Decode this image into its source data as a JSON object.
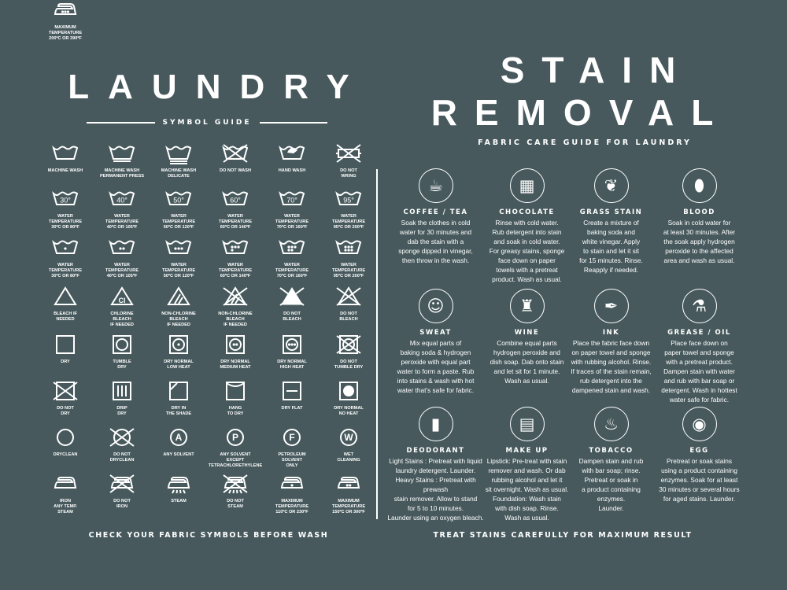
{
  "laundry": {
    "title": "LAUNDRY",
    "subtitle": "SYMBOL GUIDE",
    "footer": "CHECK YOUR FABRIC SYMBOLS BEFORE WASH",
    "symbols": [
      {
        "label": "MACHINE WASH",
        "shape": "tub",
        "under": 0
      },
      {
        "label": "MACHINE WASH\nPERMANENT PRESS",
        "shape": "tub",
        "under": 1
      },
      {
        "label": "MACHINE WASH\nDELICATE",
        "shape": "tub",
        "under": 2
      },
      {
        "label": "DO NOT WASH",
        "shape": "tub",
        "cross": true
      },
      {
        "label": "HAND WASH",
        "shape": "tub",
        "hand": true
      },
      {
        "label": "DO NOT\nWRING",
        "shape": "wring",
        "cross": true
      },
      {
        "label": "WATER\nTEMPERATURE\n30ºC OR 80ºF",
        "shape": "tub",
        "mark": "30°"
      },
      {
        "label": "WATER\nTEMPERATURE\n40ºC OR 105ºF",
        "shape": "tub",
        "mark": "40°"
      },
      {
        "label": "WATER\nTEMPERATURE\n50ºC OR 120ºF",
        "shape": "tub",
        "mark": "50°"
      },
      {
        "label": "WATER\nTEMPERATURE\n60ºC OR 140ºF",
        "shape": "tub",
        "mark": "60°"
      },
      {
        "label": "WATER\nTEMPERATURE\n70ºC OR 160ºF",
        "shape": "tub",
        "mark": "70°"
      },
      {
        "label": "WATER\nTEMPERATURE\n95ºC OR 200ºF",
        "shape": "tub",
        "mark": "95°"
      },
      {
        "label": "WATER\nTEMPERATURE\n30ºC OR 80ºF",
        "shape": "tub",
        "dots": 1
      },
      {
        "label": "WATER\nTEMPERATURE\n40ºC OR 105ºF",
        "shape": "tub",
        "dots": 2
      },
      {
        "label": "WATER\nTEMPERATURE\n50ºC OR 120ºF",
        "shape": "tub",
        "dots": 3
      },
      {
        "label": "WATER\nTEMPERATURE\n60ºC OR 140ºF",
        "shape": "tub",
        "dots": 4
      },
      {
        "label": "WATER\nTEMPERATURE\n70ºC OR 160ºF",
        "shape": "tub",
        "dots": 5
      },
      {
        "label": "WATER\nTEMPERATURE\n95ºC OR 200ºF",
        "shape": "tub",
        "dots": 6
      },
      {
        "label": "BLEACH IF\nNEEDED",
        "shape": "triangle"
      },
      {
        "label": "CHLORINE\nBLEACH\nIF NEEDED",
        "shape": "triangle",
        "mark": "Cl"
      },
      {
        "label": "NON-CHLORINE\nBLEACH\nIF NEEDED",
        "shape": "triangle",
        "stripes": true
      },
      {
        "label": "NON-CHLORINE\nBLEACH\nIF NEEDED",
        "shape": "triangle",
        "stripes": true,
        "cross": true
      },
      {
        "label": "DO NOT\nBLEACH",
        "shape": "triangle",
        "filled": true,
        "cross": true
      },
      {
        "label": "DO NOT\nBLEACH",
        "shape": "triangle",
        "cross": true
      },
      {
        "label": "DRY",
        "shape": "square"
      },
      {
        "label": "TUMBLE\nDRY",
        "shape": "square",
        "ring": true
      },
      {
        "label": "DRY NORMAL\nLOW HEAT",
        "shape": "square",
        "ring": true,
        "dots": 1
      },
      {
        "label": "DRY NORMAL\nMEDIUM HEAT",
        "shape": "square",
        "ring": true,
        "dots": 2
      },
      {
        "label": "DRY NORMAL\nHIGH HEAT",
        "shape": "square",
        "ring": true,
        "dots": 3
      },
      {
        "label": "DO NOT\nTUMBLE DRY",
        "shape": "square",
        "ring": true,
        "cross": true
      },
      {
        "label": "DO NOT\nDRY",
        "shape": "square",
        "cross": true
      },
      {
        "label": "DRIP\nDRY",
        "shape": "square",
        "vlines": 3
      },
      {
        "label": "DRY IN\nTHE SHADE",
        "shape": "square",
        "shade": true
      },
      {
        "label": "HANG\nTO DRY",
        "shape": "square",
        "hang": true
      },
      {
        "label": "DRY FLAT",
        "shape": "square",
        "flat": true
      },
      {
        "label": "DRY NORMAL\nNO HEAT",
        "shape": "square",
        "filledring": true
      },
      {
        "label": "DRYCLEAN",
        "shape": "circle"
      },
      {
        "label": "DO NOT\nDRYCLEAN",
        "shape": "circle",
        "cross": true
      },
      {
        "label": "ANY SOLVENT",
        "shape": "circle",
        "mark": "A"
      },
      {
        "label": "ANY SOLVENT\nEXCEPT\nTETRACHLORETHYLENE",
        "shape": "circle",
        "mark": "P"
      },
      {
        "label": "PETROLEUM\nSOLVENT\nONLY",
        "shape": "circle",
        "mark": "F"
      },
      {
        "label": "WET\nCLEANING",
        "shape": "circle",
        "mark": "W"
      },
      {
        "label": "IRON\nANY TEMP.\nSTEAM",
        "shape": "iron"
      },
      {
        "label": "DO NOT\nIRON",
        "shape": "iron",
        "cross": true
      },
      {
        "label": "STEAM",
        "shape": "iron",
        "steam": true
      },
      {
        "label": "DO NOT\nSTEAM",
        "shape": "iron",
        "steam": true,
        "cross": true
      },
      {
        "label": "MAXIMUM\nTEMPERATURE\n110ºC OR 230ºF",
        "shape": "iron",
        "dots": 1
      },
      {
        "label": "MAXIMUM\nTEMPERATURE\n150ºC OR 300ºF",
        "shape": "iron",
        "dots": 2
      },
      {
        "label": "MAXIMUM\nTEMPERATURE\n200ºC OR 390ºF",
        "shape": "iron",
        "dots": 3
      }
    ]
  },
  "stain": {
    "title_line1": "STAIN",
    "title_line2": "REMOVAL",
    "subtitle": "FABRIC CARE GUIDE FOR LAUNDRY",
    "footer": "TREAT STAINS CAREFULLY FOR MAXIMUM RESULT",
    "items": [
      {
        "title": "COFFEE / TEA",
        "icon": "coffee-cup-icon",
        "desc": "Soak the clothes in cold\nwater for 30 minutes and\ndab the stain with a\nsponge dipped in vinegar,\nthen throw in the wash."
      },
      {
        "title": "CHOCOLATE",
        "icon": "chocolate-bar-icon",
        "desc": "Rinse with cold water.\nRub detergent into stain\nand soak in cold water.\nFor greasy stains, sponge\nface down on paper\ntowels with a pretreat\nproduct. Wash as usual."
      },
      {
        "title": "GRASS STAIN",
        "icon": "leaf-icon",
        "desc": "Create a mixture of\nbaking soda and\nwhite vinegar. Apply\nto stain and let it sit\nfor 15 minutes. Rinse.\nReapply if needed."
      },
      {
        "title": "BLOOD",
        "icon": "drop-icon",
        "desc": "Soak in cold water for\nat least 30 minutes. After\nthe soak apply hydrogen\nperoxide to the affected\narea and wash as usual."
      },
      {
        "title": "SWEAT",
        "icon": "sweating-person-icon",
        "desc": "Mix equal parts of\nbaking soda & hydrogen\nperoxide with equal part\nwater to form a paste. Rub\ninto stains & wash with hot\nwater that's safe for fabric."
      },
      {
        "title": "WINE",
        "icon": "wine-bottle-glass-icon",
        "desc": "Combine equal parts\nhydrogen peroxide and\ndish soap. Dab onto stain\nand let sit for 1 minute.\nWash as usual."
      },
      {
        "title": "INK",
        "icon": "quill-ink-icon",
        "desc": "Place the fabric face down\non paper towel and sponge\nwith rubbing alcohol. Rinse.\nIf traces of the stain remain,\nrub detergent into the\ndampened stain and wash."
      },
      {
        "title": "GREASE / OIL",
        "icon": "oil-flask-icon",
        "desc": "Place face down on\npaper towel and sponge\nwith a pretreat product.\nDampen stain with water\nand rub with bar soap or\ndetergent. Wash in hottest\nwater safe for fabric."
      },
      {
        "title": "DEODORANT",
        "icon": "deodorant-icon",
        "desc": "Light Stains : Pretreat with liquid\nlaundry detergent. Launder.\nHeavy Stains : Pretreat with prewash\nstain remover. Allow to stand\nfor 5 to 10 minutes.\nLaunder using an oxygen bleach."
      },
      {
        "title": "MAKE UP",
        "icon": "makeup-palette-icon",
        "desc": "Lipstick: Pre-treat with stain\nremover and wash. Or dab\nrubbing alcohol and let it\nsit overnight. Wash as usual.\nFoundation: Wash stain\nwith dish soap. Rinse.\nWash as usual."
      },
      {
        "title": "TOBACCO",
        "icon": "pipe-icon",
        "desc": "Dampen stain and rub\nwith bar soap; rinse.\nPretreat or soak in\na product containing\nenzymes.\nLaunder."
      },
      {
        "title": "EGG",
        "icon": "fried-egg-icon",
        "desc": "Pretreat or soak stains\nusing a product containing\nenzymes. Soak for at least\n30 minutes or several hours\nfor aged stains. Launder."
      }
    ]
  },
  "colors": {
    "background": "#47595d",
    "foreground": "#ffffff"
  }
}
